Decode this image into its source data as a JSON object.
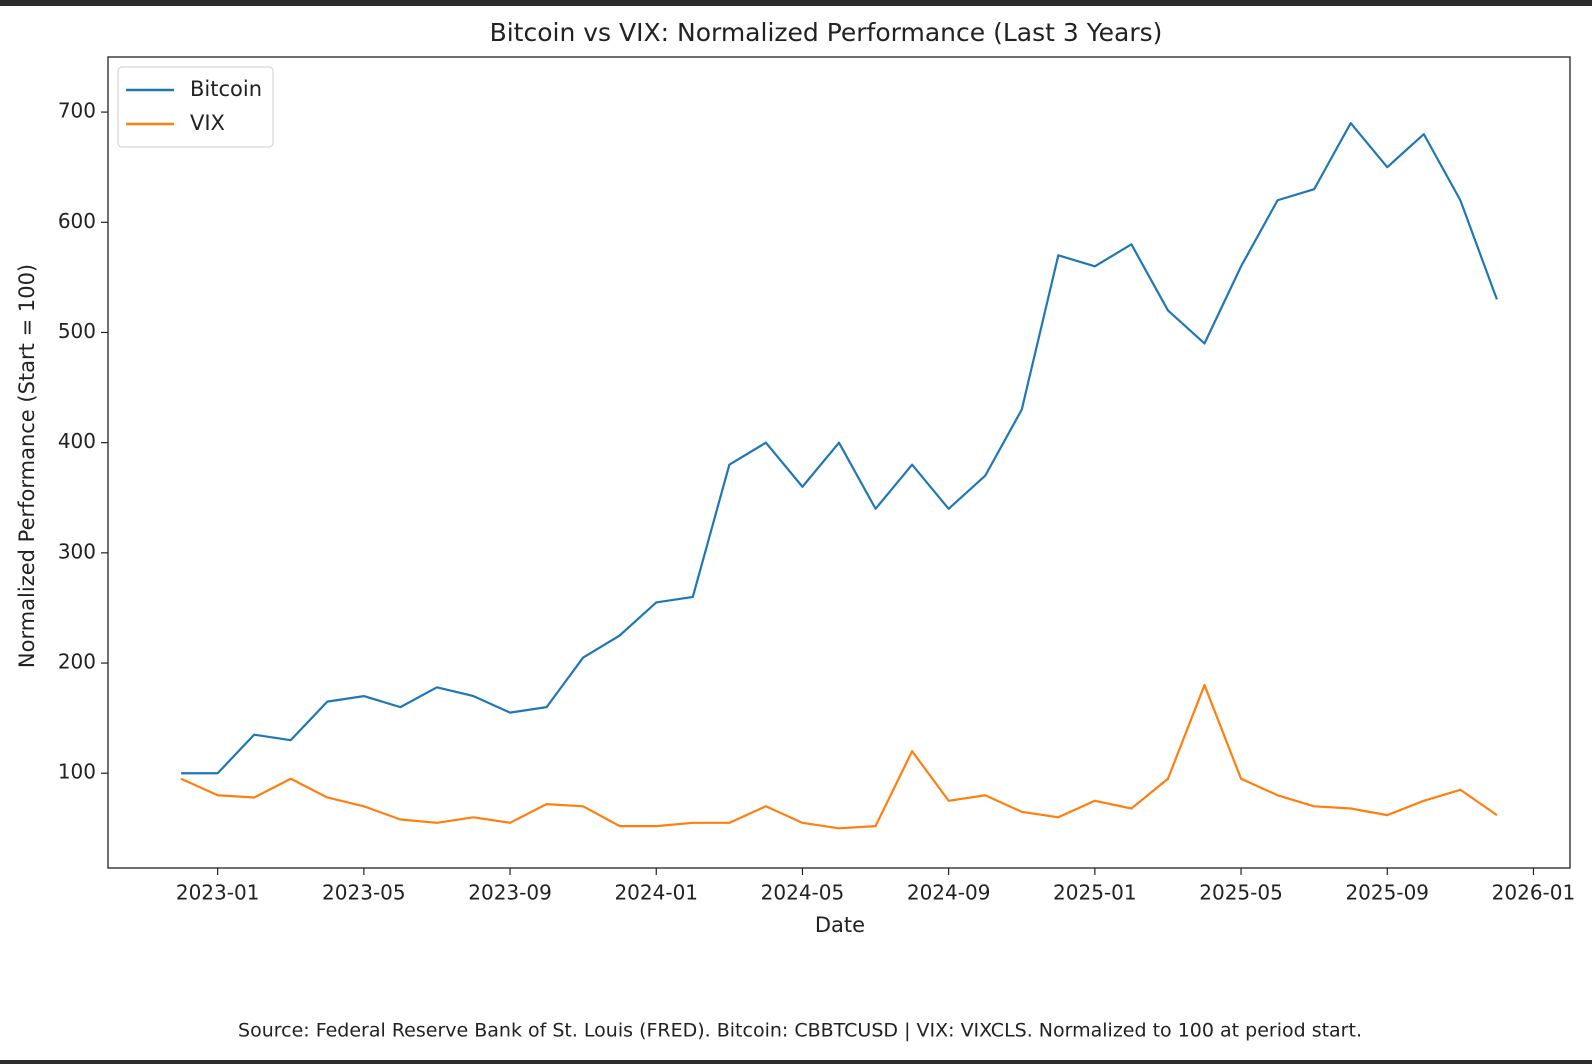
{
  "chart_data": {
    "type": "line",
    "title": "Bitcoin vs VIX: Normalized Performance (Last 3 Years)",
    "xlabel": "Date",
    "ylabel": "Normalized Performance (Start = 100)",
    "source": "Source: Federal Reserve Bank of St. Louis (FRED). Bitcoin: CBBTCUSD | VIX: VIXCLS. Normalized to 100 at period start.",
    "x": [
      "2022-12",
      "2023-01",
      "2023-02",
      "2023-03",
      "2023-04",
      "2023-05",
      "2023-06",
      "2023-07",
      "2023-08",
      "2023-09",
      "2023-10",
      "2023-11",
      "2023-12",
      "2024-01",
      "2024-02",
      "2024-03",
      "2024-04",
      "2024-05",
      "2024-06",
      "2024-07",
      "2024-08",
      "2024-09",
      "2024-10",
      "2024-11",
      "2024-12",
      "2025-01",
      "2025-02",
      "2025-03",
      "2025-04",
      "2025-05",
      "2025-06",
      "2025-07",
      "2025-08",
      "2025-09",
      "2025-10",
      "2025-11",
      "2025-12"
    ],
    "series": [
      {
        "name": "Bitcoin",
        "color": "#1f77b4",
        "values": [
          100,
          100,
          135,
          130,
          165,
          170,
          160,
          178,
          170,
          155,
          160,
          205,
          225,
          255,
          260,
          380,
          400,
          360,
          400,
          340,
          380,
          340,
          370,
          430,
          570,
          560,
          580,
          520,
          490,
          560,
          620,
          630,
          690,
          650,
          680,
          620,
          530
        ]
      },
      {
        "name": "VIX",
        "color": "#ff7f0e",
        "values": [
          95,
          80,
          78,
          95,
          78,
          70,
          58,
          55,
          60,
          55,
          72,
          70,
          52,
          52,
          55,
          55,
          70,
          55,
          50,
          52,
          120,
          75,
          80,
          65,
          60,
          75,
          68,
          95,
          180,
          95,
          80,
          70,
          68,
          62,
          75,
          85,
          62
        ]
      }
    ],
    "xlim": [
      "2022-10",
      "2026-02"
    ],
    "xticks": [
      "2023-01",
      "2023-05",
      "2023-09",
      "2024-01",
      "2024-05",
      "2024-09",
      "2025-01",
      "2025-05",
      "2025-09",
      "2026-01"
    ],
    "ylim": [
      14,
      750
    ],
    "yticks": [
      100,
      200,
      300,
      400,
      500,
      600,
      700
    ],
    "grid": false,
    "legend": "upper left"
  }
}
